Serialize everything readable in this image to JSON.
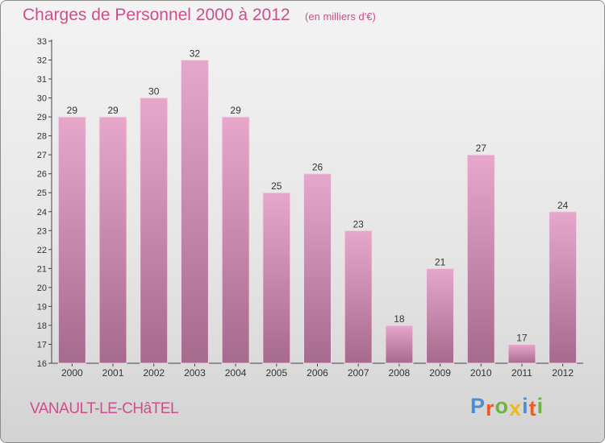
{
  "chart_data": {
    "type": "bar",
    "title": "Charges de Personnel 2000 à 2012",
    "unit_label": "(en milliers d'€)",
    "categories": [
      "2000",
      "2001",
      "2002",
      "2003",
      "2004",
      "2005",
      "2006",
      "2007",
      "2008",
      "2009",
      "2010",
      "2011",
      "2012"
    ],
    "values": [
      29,
      29,
      30,
      32,
      29,
      25,
      26,
      23,
      18,
      21,
      27,
      17,
      24
    ],
    "ylim": [
      16,
      33
    ],
    "yticks": [
      16,
      17,
      18,
      19,
      20,
      21,
      22,
      23,
      24,
      25,
      26,
      27,
      28,
      29,
      30,
      31,
      32,
      33
    ],
    "grid": false,
    "bar_color": "#c9739e",
    "xlabel": "",
    "ylabel": ""
  },
  "commune": "VANAULT-LE-CHâTEL",
  "logo_text": "Proxiti",
  "colors": {
    "title": "#cc4f8b",
    "bar_light": "#e6a7cb",
    "bar_dark": "#a66a8d",
    "logo": [
      "#4a8fd6",
      "#e95c2a",
      "#6cb43f",
      "#f0b81b",
      "#4a8fd6",
      "#e95c2a",
      "#6cb43f"
    ]
  }
}
